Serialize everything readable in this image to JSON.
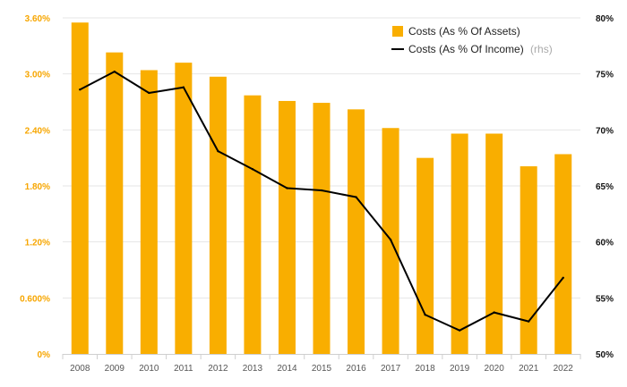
{
  "chart_data": {
    "type": "bar",
    "categories": [
      "2008",
      "2009",
      "2010",
      "2011",
      "2012",
      "2013",
      "2014",
      "2015",
      "2016",
      "2017",
      "2018",
      "2019",
      "2020",
      "2021",
      "2022"
    ],
    "series": [
      {
        "name": "Costs (As % Of Assets)",
        "type": "bar",
        "axis": "left",
        "color": "#f9ae00",
        "values": [
          3.55,
          3.23,
          3.04,
          3.12,
          2.97,
          2.77,
          2.71,
          2.69,
          2.62,
          2.42,
          2.1,
          2.36,
          2.36,
          2.01,
          2.14
        ]
      },
      {
        "name": "Costs (As % Of Income)",
        "name_suffix": "(rhs)",
        "type": "line",
        "axis": "right",
        "color": "#000000",
        "values": [
          73.6,
          75.2,
          73.3,
          73.8,
          68.1,
          66.5,
          64.8,
          64.6,
          64.0,
          60.2,
          53.5,
          52.1,
          53.7,
          52.9,
          56.8
        ]
      }
    ],
    "y_left": {
      "ylim": [
        0,
        3.6
      ],
      "ticks": [
        0,
        0.6,
        1.2,
        1.8,
        2.4,
        3.0,
        3.6
      ],
      "tick_labels": [
        "0%",
        "0.600%",
        "1.20%",
        "1.80%",
        "2.40%",
        "3.00%",
        "3.60%"
      ]
    },
    "y_right": {
      "ylim": [
        50,
        80
      ],
      "ticks": [
        50,
        55,
        60,
        65,
        70,
        75,
        80
      ],
      "tick_labels": [
        "50%",
        "55%",
        "60%",
        "65%",
        "70%",
        "75%",
        "80%"
      ]
    },
    "grid": true,
    "legend_position": "top-right",
    "title": "",
    "xlabel": "",
    "ylabel": ""
  }
}
